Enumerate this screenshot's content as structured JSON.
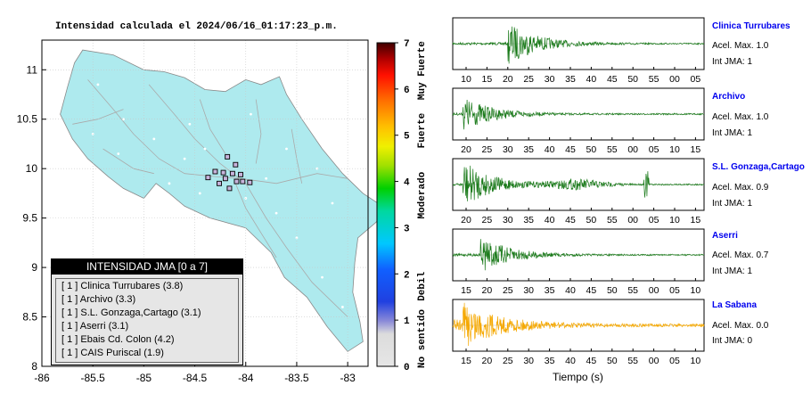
{
  "map": {
    "title": "Intensidad calculada el 2024/06/16_01:17:23_p.m.",
    "lon_ticks": [
      "-86",
      "-85.5",
      "-85",
      "-84.5",
      "-84",
      "-83.5",
      "-83"
    ],
    "lat_ticks": [
      "11",
      "10.5",
      "10",
      "9.5",
      "9",
      "8.5",
      "8"
    ],
    "xlim": [
      -86,
      -82.8
    ],
    "ylim": [
      8,
      11.3
    ],
    "land_color": "#aeeaee",
    "stations": [
      {
        "lon": -84.18,
        "lat": 10.12
      },
      {
        "lon": -84.1,
        "lat": 10.04
      },
      {
        "lon": -84.3,
        "lat": 9.97
      },
      {
        "lon": -84.22,
        "lat": 9.96
      },
      {
        "lon": -84.13,
        "lat": 9.95
      },
      {
        "lon": -84.05,
        "lat": 9.94
      },
      {
        "lon": -84.37,
        "lat": 9.91
      },
      {
        "lon": -84.2,
        "lat": 9.9
      },
      {
        "lon": -84.09,
        "lat": 9.87
      },
      {
        "lon": -84.03,
        "lat": 9.87
      },
      {
        "lon": -84.26,
        "lat": 9.85
      },
      {
        "lon": -83.96,
        "lat": 9.86
      },
      {
        "lon": -84.16,
        "lat": 9.8
      }
    ]
  },
  "legend": {
    "header": "INTENSIDAD JMA [0 a 7]",
    "items": [
      "[ 1 ]  Clinica Turrubares (3.8)",
      "[ 1 ]  Archivo (3.3)",
      "[ 1 ]  S.L. Gonzaga,Cartago (3.1)",
      "[ 1 ]  Aserri (3.1)",
      "[ 1 ]  Ebais Cd. Colon (4.2)",
      "[ 1 ]  CAIS Puriscal (1.9)"
    ]
  },
  "colorbar": {
    "ticks": [
      "0",
      "1",
      "2",
      "3",
      "4",
      "5",
      "6",
      "7"
    ],
    "category_labels": [
      "No sentido",
      "Debil",
      "Moderado",
      "Fuerte",
      "Muy Fuerte"
    ]
  },
  "stations": [
    {
      "name": "Clinica Turrubares",
      "acc": "Acel. Max. 1.0",
      "jma": "Int JMA: 1",
      "color": "#1a7a1a",
      "ticks": [
        "10",
        "15",
        "20",
        "25",
        "30",
        "35",
        "40",
        "45",
        "50",
        "55",
        "00",
        "05"
      ],
      "event": 0.22,
      "amp": 0.85,
      "extra": 0
    },
    {
      "name": "Archivo",
      "acc": "Acel. Max. 1.0",
      "jma": "Int JMA: 1",
      "color": "#1a7a1a",
      "ticks": [
        "20",
        "25",
        "30",
        "35",
        "40",
        "45",
        "50",
        "55",
        "00",
        "05",
        "10",
        "15"
      ],
      "event": 0.04,
      "amp": 0.7,
      "extra": 0
    },
    {
      "name": "S.L. Gonzaga,Cartago",
      "acc": "Acel. Max. 0.9",
      "jma": "Int JMA: 1",
      "color": "#1a7a1a",
      "ticks": [
        "20",
        "25",
        "30",
        "35",
        "40",
        "45",
        "50",
        "55",
        "00",
        "05",
        "10",
        "15"
      ],
      "event": 0.04,
      "amp": 0.95,
      "extra": 0.77
    },
    {
      "name": "Aserri",
      "acc": "Acel. Max. 0.7",
      "jma": "Int JMA: 1",
      "color": "#1a7a1a",
      "ticks": [
        "15",
        "20",
        "25",
        "30",
        "35",
        "40",
        "45",
        "50",
        "55",
        "00",
        "05",
        "10"
      ],
      "event": 0.11,
      "amp": 0.75,
      "extra": 0
    },
    {
      "name": "La Sabana",
      "acc": "Acel. Max. 0.0",
      "jma": "Int JMA: 0",
      "color": "#f5a800",
      "ticks": [
        "15",
        "20",
        "25",
        "30",
        "35",
        "40",
        "45",
        "50",
        "55",
        "00",
        "05",
        "10"
      ],
      "event": 0.04,
      "amp": 0.9,
      "extra": 0
    }
  ],
  "x_caption": "Tiempo (s)"
}
